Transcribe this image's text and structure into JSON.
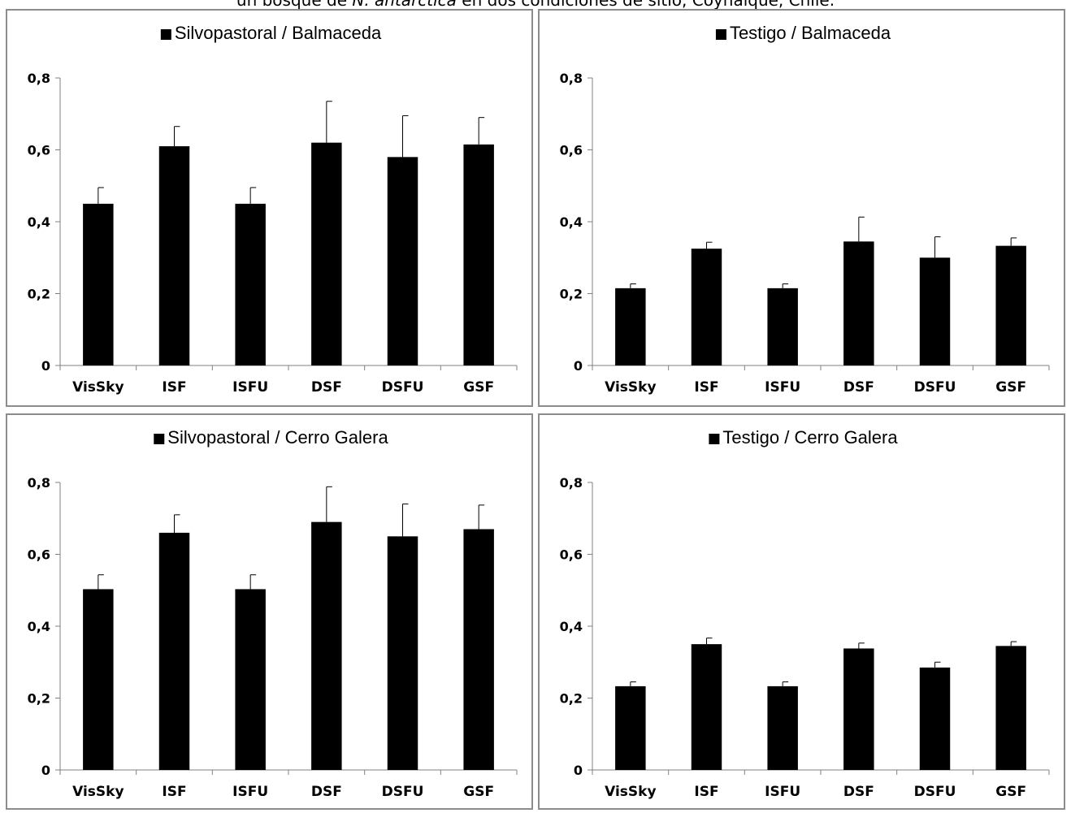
{
  "caption": {
    "before": "un bosque de ",
    "italic": "N. antarctica",
    "after": " en dos condiciones de sitio, Coyhaique, Chile."
  },
  "colors": {
    "bar": "#000000",
    "axis": "#808080",
    "border": "#8c8c8c"
  },
  "chart_data": [
    {
      "type": "bar",
      "legend": "Silvopastoral / Balmaceda",
      "legend_position": "top-center",
      "categories": [
        "VisSky",
        "ISF",
        "ISFU",
        "DSF",
        "DSFU",
        "GSF"
      ],
      "values": [
        0.45,
        0.61,
        0.45,
        0.62,
        0.58,
        0.615
      ],
      "errors": [
        0.045,
        0.055,
        0.045,
        0.115,
        0.115,
        0.075
      ],
      "ylim": [
        0,
        0.8
      ],
      "yticks": [
        "0",
        "0,2",
        "0,4",
        "0,6",
        "0,8"
      ],
      "grid": false
    },
    {
      "type": "bar",
      "legend": "Testigo / Balmaceda",
      "legend_position": "top-center",
      "categories": [
        "VisSky",
        "ISF",
        "ISFU",
        "DSF",
        "DSFU",
        "GSF"
      ],
      "values": [
        0.215,
        0.325,
        0.215,
        0.345,
        0.3,
        0.333
      ],
      "errors": [
        0.012,
        0.018,
        0.012,
        0.068,
        0.058,
        0.022
      ],
      "ylim": [
        0,
        0.8
      ],
      "yticks": [
        "0",
        "0,2",
        "0,4",
        "0,6",
        "0,8"
      ],
      "grid": false
    },
    {
      "type": "bar",
      "legend": "Silvopastoral / Cerro Galera",
      "legend_position": "top-center",
      "categories": [
        "VisSky",
        "ISF",
        "ISFU",
        "DSF",
        "DSFU",
        "GSF"
      ],
      "values": [
        0.503,
        0.66,
        0.503,
        0.69,
        0.65,
        0.67
      ],
      "errors": [
        0.04,
        0.05,
        0.04,
        0.098,
        0.09,
        0.067
      ],
      "ylim": [
        0,
        0.8
      ],
      "yticks": [
        "0",
        "0,2",
        "0,4",
        "0,6",
        "0,8"
      ],
      "grid": false
    },
    {
      "type": "bar",
      "legend": "Testigo / Cerro Galera",
      "legend_position": "top-center",
      "categories": [
        "VisSky",
        "ISF",
        "ISFU",
        "DSF",
        "DSFU",
        "GSF"
      ],
      "values": [
        0.233,
        0.35,
        0.233,
        0.338,
        0.285,
        0.345
      ],
      "errors": [
        0.012,
        0.017,
        0.012,
        0.015,
        0.015,
        0.012
      ],
      "ylim": [
        0,
        0.8
      ],
      "yticks": [
        "0",
        "0,2",
        "0,4",
        "0,6",
        "0,8"
      ],
      "grid": false
    }
  ]
}
